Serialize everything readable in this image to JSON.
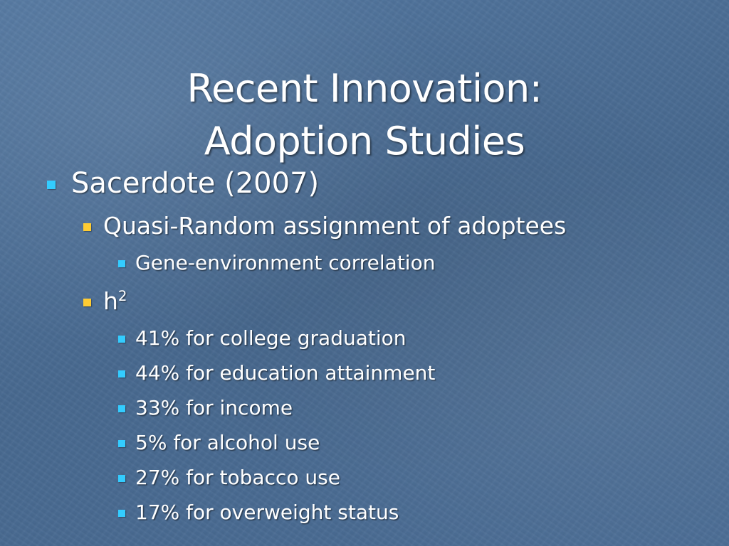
{
  "slide": {
    "title_line1": "Recent Innovation:",
    "title_line2": "Adoption Studies",
    "bullets": {
      "sacerdote": "Sacerdote (2007)",
      "quasi_random": "Quasi-Random assignment of adoptees",
      "gene_env": "Gene-environment correlation",
      "h_label": "h",
      "h_superscript": "2",
      "college": "41% for college graduation",
      "education": "44% for education attainment",
      "income": "33% for income",
      "alcohol": "5% for alcohol use",
      "tobacco": "27% for tobacco use",
      "overweight": "17% for overweight status"
    },
    "colors": {
      "background": "#4a6e96",
      "text": "#ffffff",
      "bullet_level1": "#33ccff",
      "bullet_level2": "#ffcc33",
      "bullet_level3": "#33ccff"
    },
    "icons": {
      "level1": "square-bullet-icon",
      "level2": "square-bullet-icon",
      "level3": "square-bullet-icon"
    }
  }
}
